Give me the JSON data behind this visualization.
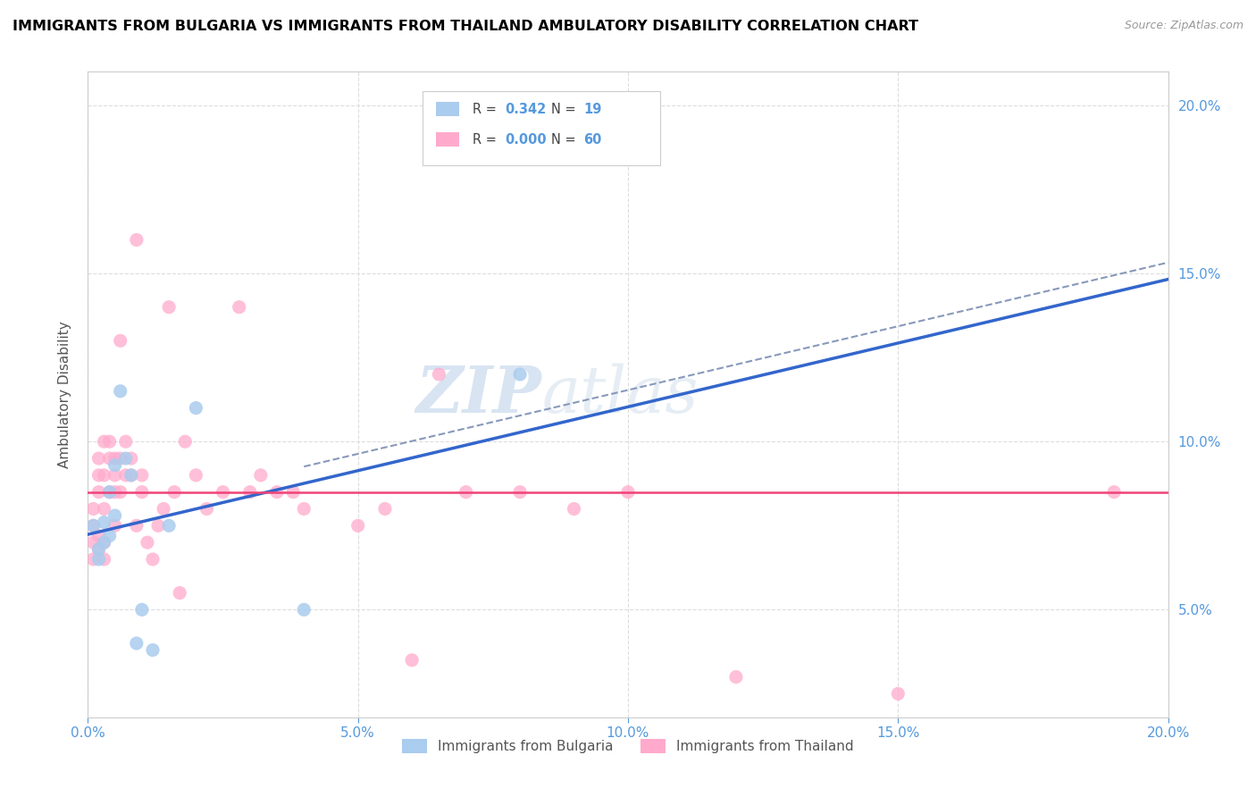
{
  "title": "IMMIGRANTS FROM BULGARIA VS IMMIGRANTS FROM THAILAND AMBULATORY DISABILITY CORRELATION CHART",
  "source": "Source: ZipAtlas.com",
  "ylabel": "Ambulatory Disability",
  "watermark_part1": "ZIP",
  "watermark_part2": "atlas",
  "legend_label1": "Immigrants from Bulgaria",
  "legend_label2": "Immigrants from Thailand",
  "r_bulgaria": 0.342,
  "n_bulgaria": 19,
  "r_thailand": 0.0,
  "n_thailand": 60,
  "xmin": 0.0,
  "xmax": 0.2,
  "ymin": 0.018,
  "ymax": 0.21,
  "color_bulgaria": "#aaccee",
  "color_thailand": "#ffaacc",
  "color_line_bulgaria": "#3366cc",
  "color_line_thailand": "#ee4477",
  "color_line_dashed": "#8899bb",
  "bulgaria_x": [
    0.001,
    0.002,
    0.002,
    0.003,
    0.003,
    0.004,
    0.004,
    0.005,
    0.005,
    0.006,
    0.007,
    0.008,
    0.009,
    0.01,
    0.012,
    0.015,
    0.02,
    0.04,
    0.08
  ],
  "bulgaria_y": [
    0.075,
    0.068,
    0.065,
    0.076,
    0.07,
    0.072,
    0.085,
    0.093,
    0.078,
    0.115,
    0.095,
    0.09,
    0.04,
    0.05,
    0.038,
    0.075,
    0.11,
    0.05,
    0.12
  ],
  "thailand_x": [
    0.001,
    0.001,
    0.001,
    0.001,
    0.002,
    0.002,
    0.002,
    0.002,
    0.002,
    0.003,
    0.003,
    0.003,
    0.003,
    0.003,
    0.004,
    0.004,
    0.004,
    0.005,
    0.005,
    0.005,
    0.005,
    0.006,
    0.006,
    0.006,
    0.007,
    0.007,
    0.008,
    0.008,
    0.009,
    0.009,
    0.01,
    0.01,
    0.011,
    0.012,
    0.013,
    0.014,
    0.015,
    0.016,
    0.017,
    0.018,
    0.02,
    0.022,
    0.025,
    0.028,
    0.03,
    0.032,
    0.035,
    0.038,
    0.04,
    0.05,
    0.055,
    0.06,
    0.065,
    0.07,
    0.08,
    0.09,
    0.1,
    0.12,
    0.15,
    0.19
  ],
  "thailand_y": [
    0.075,
    0.08,
    0.07,
    0.065,
    0.085,
    0.068,
    0.072,
    0.09,
    0.095,
    0.07,
    0.08,
    0.1,
    0.065,
    0.09,
    0.095,
    0.1,
    0.085,
    0.075,
    0.095,
    0.085,
    0.09,
    0.095,
    0.13,
    0.085,
    0.1,
    0.09,
    0.095,
    0.09,
    0.075,
    0.16,
    0.085,
    0.09,
    0.07,
    0.065,
    0.075,
    0.08,
    0.14,
    0.085,
    0.055,
    0.1,
    0.09,
    0.08,
    0.085,
    0.14,
    0.085,
    0.09,
    0.085,
    0.085,
    0.08,
    0.075,
    0.08,
    0.035,
    0.12,
    0.085,
    0.085,
    0.08,
    0.085,
    0.03,
    0.025,
    0.085
  ],
  "xticks": [
    0.0,
    0.05,
    0.1,
    0.15,
    0.2
  ],
  "yticks_right": [
    0.05,
    0.1,
    0.15,
    0.2
  ],
  "grid_color": "#dddddd",
  "spine_color": "#cccccc",
  "tick_color": "#5599dd",
  "label_color": "#555555",
  "title_fontsize": 11.5,
  "source_fontsize": 9,
  "tick_fontsize": 11,
  "ylabel_fontsize": 11
}
